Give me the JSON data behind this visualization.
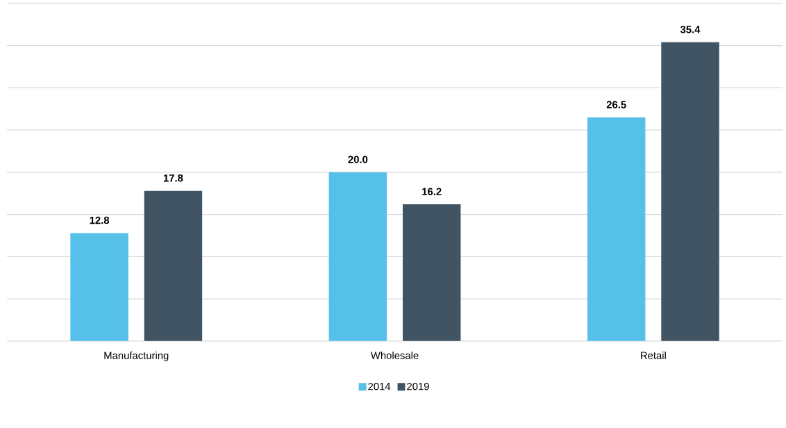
{
  "chart_data": {
    "type": "bar",
    "categories": [
      "Manufacturing",
      "Wholesale",
      "Retail"
    ],
    "series": [
      {
        "name": "2014",
        "color": "#56c1e8",
        "values": [
          12.8,
          20.0,
          26.5
        ],
        "value_labels": [
          "12.8",
          "20.0",
          "26.5"
        ]
      },
      {
        "name": "2019",
        "color": "#415464",
        "values": [
          17.8,
          16.2,
          35.4
        ],
        "value_labels": [
          "17.8",
          "16.2",
          "35.4"
        ]
      }
    ],
    "ylim": [
      0,
      40
    ],
    "yticks": [
      {
        "value": 0,
        "label": null
      },
      {
        "value": 5,
        "label": null
      },
      {
        "value": 10,
        "label": null
      },
      {
        "value": 15,
        "label": null
      },
      {
        "value": 20,
        "label": null
      },
      {
        "value": 25,
        "label": null
      },
      {
        "value": 30,
        "label": null
      },
      {
        "value": 35,
        "label": null
      },
      {
        "value": 40,
        "label": null
      }
    ],
    "tick_labels": "x",
    "grid": "y",
    "legend": "bottom"
  }
}
